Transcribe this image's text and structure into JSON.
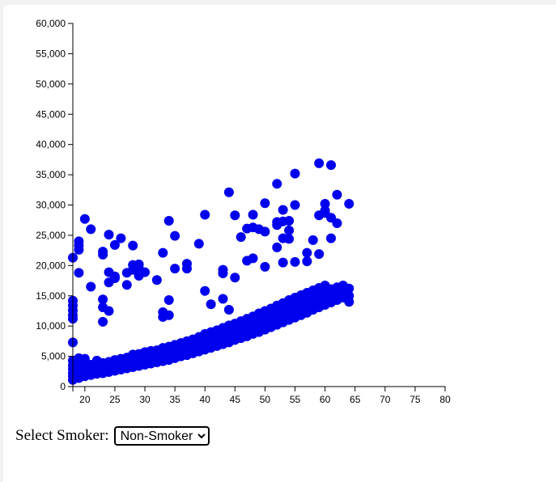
{
  "controls": {
    "label": "Select Smoker:",
    "selected": "Non-Smoker",
    "options": [
      "Non-Smoker"
    ]
  },
  "colors": {
    "point": "#0000ee"
  },
  "chart_data": {
    "type": "scatter",
    "xlim": [
      18,
      80
    ],
    "ylim": [
      0,
      60000
    ],
    "x_ticks": [
      20,
      25,
      30,
      35,
      40,
      45,
      50,
      55,
      60,
      65,
      70,
      75,
      80
    ],
    "y_ticks": [
      0,
      5000,
      10000,
      15000,
      20000,
      25000,
      30000,
      35000,
      40000,
      45000,
      50000,
      55000,
      60000
    ],
    "x_tick_labels": [
      "20",
      "25",
      "30",
      "35",
      "40",
      "45",
      "50",
      "55",
      "60",
      "65",
      "70",
      "75",
      "80"
    ],
    "y_tick_labels": [
      "0",
      "5,000",
      "10,000",
      "15,000",
      "20,000",
      "25,000",
      "30,000",
      "35,000",
      "40,000",
      "45,000",
      "50,000",
      "55,000",
      "60,000"
    ],
    "grid": false,
    "title": "",
    "xlabel": "",
    "ylabel": "",
    "series": [
      {
        "points": [
          [
            18,
            1100
          ],
          [
            18,
            1700
          ],
          [
            18,
            2200
          ],
          [
            18,
            2900
          ],
          [
            18,
            3500
          ],
          [
            18,
            4300
          ],
          [
            18,
            7300
          ],
          [
            18,
            11200
          ],
          [
            18,
            11800
          ],
          [
            18,
            12600
          ],
          [
            18,
            13400
          ],
          [
            18,
            14200
          ],
          [
            18,
            21300
          ],
          [
            19,
            1400
          ],
          [
            19,
            1800
          ],
          [
            19,
            2100
          ],
          [
            19,
            2600
          ],
          [
            19,
            3000
          ],
          [
            19,
            4400
          ],
          [
            19,
            4700
          ],
          [
            19,
            18800
          ],
          [
            19,
            22600
          ],
          [
            19,
            23300
          ],
          [
            19,
            24000
          ],
          [
            20,
            1700
          ],
          [
            20,
            2100
          ],
          [
            20,
            2600
          ],
          [
            20,
            3200
          ],
          [
            20,
            4600
          ],
          [
            20,
            27700
          ],
          [
            21,
            1900
          ],
          [
            21,
            2300
          ],
          [
            21,
            2900
          ],
          [
            21,
            3600
          ],
          [
            21,
            16500
          ],
          [
            21,
            26000
          ],
          [
            22,
            2100
          ],
          [
            22,
            2500
          ],
          [
            22,
            3100
          ],
          [
            22,
            3700
          ],
          [
            22,
            4300
          ],
          [
            23,
            2200
          ],
          [
            23,
            2700
          ],
          [
            23,
            3200
          ],
          [
            23,
            3900
          ],
          [
            23,
            10700
          ],
          [
            23,
            13100
          ],
          [
            23,
            14400
          ],
          [
            23,
            21800
          ],
          [
            23,
            22300
          ],
          [
            24,
            2400
          ],
          [
            24,
            2900
          ],
          [
            24,
            3500
          ],
          [
            24,
            4100
          ],
          [
            24,
            12500
          ],
          [
            24,
            17200
          ],
          [
            24,
            18900
          ],
          [
            24,
            25100
          ],
          [
            25,
            2600
          ],
          [
            25,
            3100
          ],
          [
            25,
            3600
          ],
          [
            25,
            4400
          ],
          [
            25,
            17900
          ],
          [
            25,
            18200
          ],
          [
            25,
            23400
          ],
          [
            26,
            2800
          ],
          [
            26,
            3300
          ],
          [
            26,
            3900
          ],
          [
            26,
            4600
          ],
          [
            26,
            24500
          ],
          [
            27,
            3000
          ],
          [
            27,
            3500
          ],
          [
            27,
            4100
          ],
          [
            27,
            4800
          ],
          [
            27,
            16800
          ],
          [
            27,
            18800
          ],
          [
            28,
            3200
          ],
          [
            28,
            3700
          ],
          [
            28,
            4400
          ],
          [
            28,
            5300
          ],
          [
            28,
            19300
          ],
          [
            28,
            20100
          ],
          [
            28,
            23300
          ],
          [
            29,
            3400
          ],
          [
            29,
            4000
          ],
          [
            29,
            4600
          ],
          [
            29,
            5400
          ],
          [
            29,
            18300
          ],
          [
            29,
            19600
          ],
          [
            29,
            20200
          ],
          [
            30,
            3600
          ],
          [
            30,
            4200
          ],
          [
            30,
            4900
          ],
          [
            30,
            5700
          ],
          [
            30,
            18900
          ],
          [
            31,
            3800
          ],
          [
            31,
            4400
          ],
          [
            31,
            5100
          ],
          [
            31,
            5900
          ],
          [
            32,
            4000
          ],
          [
            32,
            4600
          ],
          [
            32,
            5300
          ],
          [
            32,
            6000
          ],
          [
            32,
            17600
          ],
          [
            33,
            4200
          ],
          [
            33,
            4800
          ],
          [
            33,
            5600
          ],
          [
            33,
            6400
          ],
          [
            33,
            11500
          ],
          [
            33,
            12300
          ],
          [
            33,
            22100
          ],
          [
            34,
            4400
          ],
          [
            34,
            5100
          ],
          [
            34,
            5900
          ],
          [
            34,
            6600
          ],
          [
            34,
            11800
          ],
          [
            34,
            14300
          ],
          [
            34,
            27400
          ],
          [
            35,
            4700
          ],
          [
            35,
            5400
          ],
          [
            35,
            6200
          ],
          [
            35,
            6900
          ],
          [
            35,
            19500
          ],
          [
            35,
            24900
          ],
          [
            36,
            5000
          ],
          [
            36,
            5700
          ],
          [
            36,
            6500
          ],
          [
            36,
            7200
          ],
          [
            37,
            5200
          ],
          [
            37,
            5900
          ],
          [
            37,
            6800
          ],
          [
            37,
            7500
          ],
          [
            37,
            19500
          ],
          [
            37,
            20300
          ],
          [
            38,
            5500
          ],
          [
            38,
            6200
          ],
          [
            38,
            7100
          ],
          [
            38,
            7800
          ],
          [
            39,
            5800
          ],
          [
            39,
            6500
          ],
          [
            39,
            7400
          ],
          [
            39,
            8200
          ],
          [
            39,
            23600
          ],
          [
            40,
            6100
          ],
          [
            40,
            6900
          ],
          [
            40,
            7800
          ],
          [
            40,
            8700
          ],
          [
            40,
            15800
          ],
          [
            40,
            28400
          ],
          [
            41,
            6400
          ],
          [
            41,
            7200
          ],
          [
            41,
            8100
          ],
          [
            41,
            9000
          ],
          [
            41,
            13600
          ],
          [
            42,
            6700
          ],
          [
            42,
            7500
          ],
          [
            42,
            8500
          ],
          [
            42,
            9300
          ],
          [
            43,
            7000
          ],
          [
            43,
            7800
          ],
          [
            43,
            8800
          ],
          [
            43,
            9700
          ],
          [
            43,
            14500
          ],
          [
            43,
            18700
          ],
          [
            43,
            19300
          ],
          [
            44,
            7300
          ],
          [
            44,
            8200
          ],
          [
            44,
            9200
          ],
          [
            44,
            10100
          ],
          [
            44,
            12700
          ],
          [
            44,
            32100
          ],
          [
            45,
            7700
          ],
          [
            45,
            8500
          ],
          [
            45,
            9500
          ],
          [
            45,
            10400
          ],
          [
            45,
            18000
          ],
          [
            45,
            28300
          ],
          [
            46,
            8000
          ],
          [
            46,
            8900
          ],
          [
            46,
            9900
          ],
          [
            46,
            10800
          ],
          [
            46,
            24700
          ],
          [
            47,
            8300
          ],
          [
            47,
            9200
          ],
          [
            47,
            10300
          ],
          [
            47,
            11200
          ],
          [
            47,
            20800
          ],
          [
            47,
            26100
          ],
          [
            48,
            8700
          ],
          [
            48,
            9600
          ],
          [
            48,
            10700
          ],
          [
            48,
            11600
          ],
          [
            48,
            21200
          ],
          [
            48,
            26300
          ],
          [
            48,
            28400
          ],
          [
            49,
            9000
          ],
          [
            49,
            10000
          ],
          [
            49,
            11100
          ],
          [
            49,
            12100
          ],
          [
            49,
            26000
          ],
          [
            50,
            9400
          ],
          [
            50,
            10400
          ],
          [
            50,
            11500
          ],
          [
            50,
            12500
          ],
          [
            50,
            19800
          ],
          [
            50,
            25600
          ],
          [
            50,
            30300
          ],
          [
            51,
            9800
          ],
          [
            51,
            10800
          ],
          [
            51,
            11900
          ],
          [
            51,
            12900
          ],
          [
            52,
            10200
          ],
          [
            52,
            11200
          ],
          [
            52,
            12300
          ],
          [
            52,
            13400
          ],
          [
            52,
            23000
          ],
          [
            52,
            26700
          ],
          [
            52,
            27200
          ],
          [
            52,
            33500
          ],
          [
            53,
            10600
          ],
          [
            53,
            11600
          ],
          [
            53,
            12700
          ],
          [
            53,
            13800
          ],
          [
            53,
            20500
          ],
          [
            53,
            24500
          ],
          [
            53,
            27300
          ],
          [
            53,
            29200
          ],
          [
            54,
            11000
          ],
          [
            54,
            12100
          ],
          [
            54,
            13200
          ],
          [
            54,
            14300
          ],
          [
            54,
            24400
          ],
          [
            54,
            25800
          ],
          [
            54,
            27400
          ],
          [
            55,
            11400
          ],
          [
            55,
            12500
          ],
          [
            55,
            13600
          ],
          [
            55,
            14700
          ],
          [
            55,
            20600
          ],
          [
            55,
            30000
          ],
          [
            55,
            35200
          ],
          [
            56,
            11800
          ],
          [
            56,
            12900
          ],
          [
            56,
            14000
          ],
          [
            56,
            15100
          ],
          [
            57,
            12200
          ],
          [
            57,
            13300
          ],
          [
            57,
            14400
          ],
          [
            57,
            15500
          ],
          [
            57,
            20700
          ],
          [
            57,
            22100
          ],
          [
            58,
            12700
          ],
          [
            58,
            13800
          ],
          [
            58,
            14900
          ],
          [
            58,
            15900
          ],
          [
            58,
            24200
          ],
          [
            59,
            13100
          ],
          [
            59,
            14200
          ],
          [
            59,
            15300
          ],
          [
            59,
            16300
          ],
          [
            59,
            21900
          ],
          [
            59,
            28300
          ],
          [
            59,
            36900
          ],
          [
            60,
            13500
          ],
          [
            60,
            14600
          ],
          [
            60,
            15700
          ],
          [
            60,
            16700
          ],
          [
            60,
            28700
          ],
          [
            60,
            29100
          ],
          [
            60,
            30200
          ],
          [
            61,
            13900
          ],
          [
            61,
            15000
          ],
          [
            61,
            16100
          ],
          [
            61,
            24500
          ],
          [
            61,
            27900
          ],
          [
            61,
            36600
          ],
          [
            62,
            14300
          ],
          [
            62,
            15300
          ],
          [
            62,
            16400
          ],
          [
            62,
            27000
          ],
          [
            62,
            31700
          ],
          [
            63,
            14700
          ],
          [
            63,
            15700
          ],
          [
            63,
            16700
          ],
          [
            64,
            14000
          ],
          [
            64,
            15000
          ],
          [
            64,
            16200
          ],
          [
            64,
            30200
          ]
        ]
      }
    ]
  }
}
